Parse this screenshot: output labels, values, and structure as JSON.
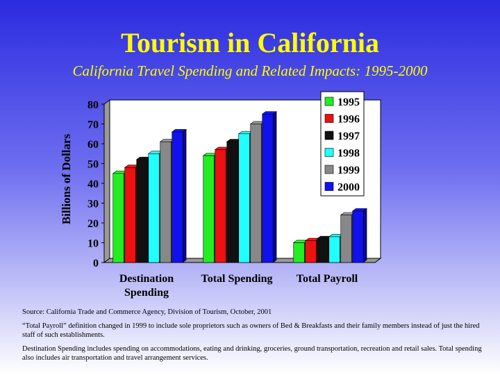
{
  "header": {
    "title": "Tourism in California",
    "subtitle": "California Travel Spending and Related Impacts: 1995-2000"
  },
  "chart_data": {
    "type": "bar",
    "title": "",
    "xlabel": "",
    "ylabel": "Billions of Dollars",
    "ylim": [
      0,
      80
    ],
    "yticks": [
      0,
      10,
      20,
      30,
      40,
      50,
      60,
      70,
      80
    ],
    "categories": [
      "Destination Spending",
      "Total Spending",
      "Total Payroll"
    ],
    "category_lines": [
      [
        "Destination",
        "Spending"
      ],
      [
        "Total Spending"
      ],
      [
        "Total Payroll"
      ]
    ],
    "series": [
      {
        "name": "1995",
        "color": "#22ee22",
        "values": [
          45,
          54,
          10
        ]
      },
      {
        "name": "1996",
        "color": "#ee1111",
        "values": [
          48,
          57,
          11
        ]
      },
      {
        "name": "1997",
        "color": "#111111",
        "values": [
          52,
          61,
          12
        ]
      },
      {
        "name": "1998",
        "color": "#22ffff",
        "values": [
          55,
          65,
          13
        ]
      },
      {
        "name": "1999",
        "color": "#888888",
        "values": [
          61,
          70,
          24
        ]
      },
      {
        "name": "2000",
        "color": "#1111ee",
        "values": [
          66,
          75,
          26
        ]
      }
    ],
    "legend": "right",
    "grid": false
  },
  "notes": {
    "source": "Source: California Trade and Commerce Agency, Division of Tourism, October, 2001",
    "payroll_note": "“Total Payroll” definition changed in 1999 to include sole proprietors such as owners of Bed & Breakfasts and their family members instead of just the hired staff of such establishments.",
    "destination_note": "Destination Spending includes spending on accommodations, eating and drinking, groceries, ground transportation, recreation and retail sales.  Total spending also includes air transportation and travel arrangement services."
  }
}
